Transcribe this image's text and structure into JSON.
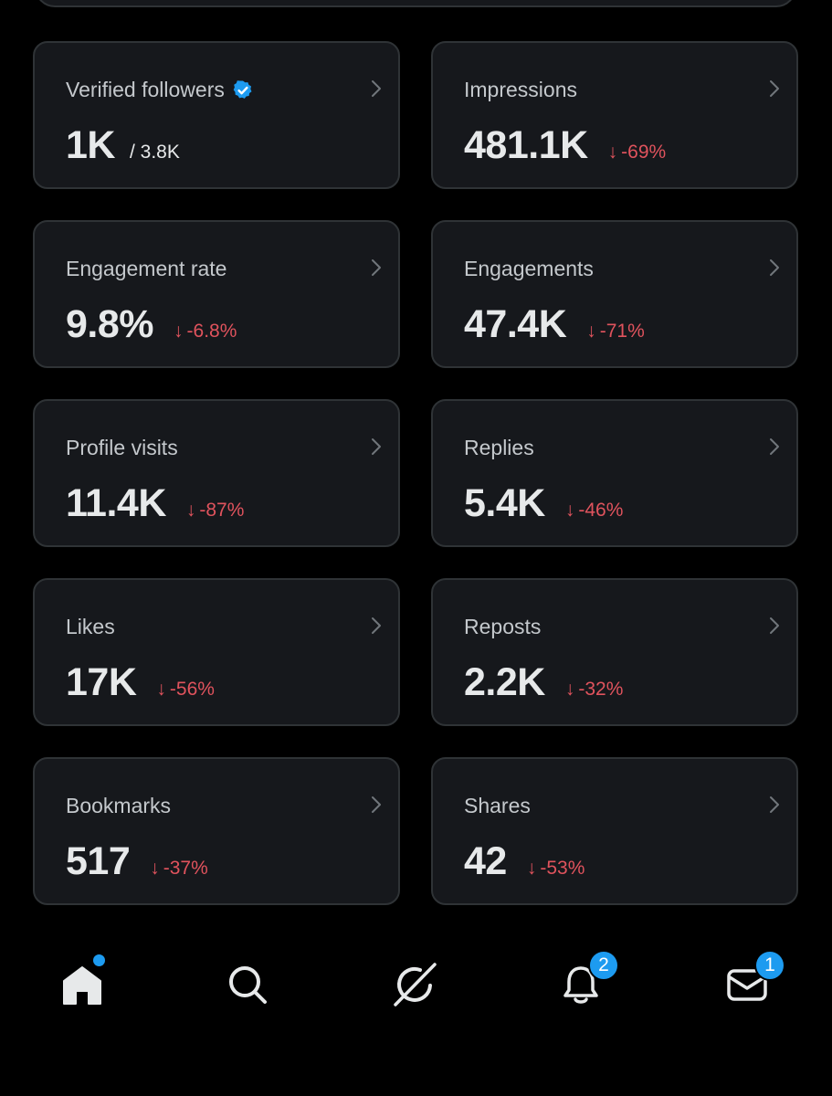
{
  "colors": {
    "background": "#000000",
    "card": "#16181c",
    "card_border": "#2f3336",
    "negative": "#e0535d",
    "accent": "#1d9bf0"
  },
  "metrics": [
    {
      "label": "Verified followers",
      "value": "1K",
      "sub": "/ 3.8K",
      "change": "",
      "arrow": "",
      "verified_icon": "verified-badge-icon"
    },
    {
      "label": "Impressions",
      "value": "481.1K",
      "sub": "",
      "change": "-69%",
      "arrow": "↓"
    },
    {
      "label": "Engagement rate",
      "value": "9.8%",
      "sub": "",
      "change": "-6.8%",
      "arrow": "↓"
    },
    {
      "label": "Engagements",
      "value": "47.4K",
      "sub": "",
      "change": "-71%",
      "arrow": "↓"
    },
    {
      "label": "Profile visits",
      "value": "11.4K",
      "sub": "",
      "change": "-87%",
      "arrow": "↓"
    },
    {
      "label": "Replies",
      "value": "5.4K",
      "sub": "",
      "change": "-46%",
      "arrow": "↓"
    },
    {
      "label": "Likes",
      "value": "17K",
      "sub": "",
      "change": "-56%",
      "arrow": "↓"
    },
    {
      "label": "Reposts",
      "value": "2.2K",
      "sub": "",
      "change": "-32%",
      "arrow": "↓"
    },
    {
      "label": "Bookmarks",
      "value": "517",
      "sub": "",
      "change": "-37%",
      "arrow": "↓"
    },
    {
      "label": "Shares",
      "value": "42",
      "sub": "",
      "change": "-53%",
      "arrow": "↓"
    }
  ],
  "nav": {
    "items": [
      {
        "name": "home",
        "icon": "home-icon"
      },
      {
        "name": "search",
        "icon": "search-icon"
      },
      {
        "name": "grok",
        "icon": "grok-icon"
      },
      {
        "name": "notifications",
        "icon": "bell-icon",
        "badge": "2"
      },
      {
        "name": "messages",
        "icon": "envelope-icon",
        "badge": "1"
      }
    ]
  }
}
